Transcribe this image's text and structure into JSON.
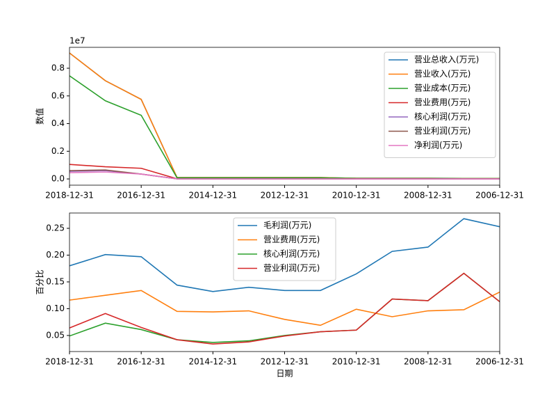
{
  "chart_data": [
    {
      "type": "line",
      "ylabel": "数值",
      "y_offset_label": "1e7",
      "categories": [
        "2018-12-31",
        null,
        "2016-12-31",
        null,
        "2014-12-31",
        null,
        "2012-12-31",
        null,
        "2010-12-31",
        null,
        "2008-12-31",
        null,
        "2006-12-31"
      ],
      "ylim": [
        -0.045,
        0.951
      ],
      "yticks": [
        {
          "value": 0,
          "label": "0.0"
        },
        0.2,
        0.4,
        0.6,
        0.8
      ],
      "legend": "upper right",
      "series": [
        {
          "name": "营业总收入(万元)",
          "color": "#1f77b4",
          "values": [
            0.91,
            0.71,
            0.575,
            0.01,
            0.01,
            0.01,
            0.01,
            0.01,
            0.005,
            0.005,
            0.005,
            0.004,
            0.004
          ]
        },
        {
          "name": "营业收入(万元)",
          "color": "#ff7f0e",
          "values": [
            0.91,
            0.71,
            0.575,
            0.01,
            0.01,
            0.01,
            0.01,
            0.01,
            0.005,
            0.005,
            0.005,
            0.004,
            0.004
          ]
        },
        {
          "name": "营业成本(万元)",
          "color": "#2ca02c",
          "values": [
            0.745,
            0.565,
            0.46,
            0.008,
            0.008,
            0.008,
            0.008,
            0.008,
            0.004,
            0.004,
            0.004,
            0.003,
            0.003
          ]
        },
        {
          "name": "营业费用(万元)",
          "color": "#d62728",
          "values": [
            0.105,
            0.088,
            0.077,
            0.001,
            0.001,
            0.001,
            0.001,
            0.001,
            0.0005,
            0.0005,
            0.0005,
            0.0004,
            0.0004
          ]
        },
        {
          "name": "核心利润(万元)",
          "color": "#9467bd",
          "values": [
            0.055,
            0.06,
            0.035,
            0.0005,
            0.0004,
            0.0004,
            0.0004,
            0.0004,
            0.0003,
            0.0003,
            0.0003,
            0.0003,
            0.0003
          ]
        },
        {
          "name": "营业利润(万元)",
          "color": "#8c564b",
          "values": [
            0.06,
            0.065,
            0.035,
            0.0005,
            0.0004,
            0.0004,
            0.0004,
            0.0004,
            0.0003,
            0.0003,
            0.0003,
            0.0003,
            0.0003
          ]
        },
        {
          "name": "净利润(万元)",
          "color": "#e377c2",
          "values": [
            0.045,
            0.05,
            0.035,
            0.0004,
            0.0003,
            0.0003,
            0.0003,
            0.0003,
            0.0002,
            0.0002,
            0.0002,
            0.0002,
            0.0002
          ]
        }
      ]
    },
    {
      "type": "line",
      "ylabel": "百分比",
      "xlabel": "日期",
      "categories": [
        "2018-12-31",
        null,
        "2016-12-31",
        null,
        "2014-12-31",
        null,
        "2012-12-31",
        null,
        "2010-12-31",
        null,
        "2008-12-31",
        null,
        "2006-12-31"
      ],
      "ylim": [
        0.02,
        0.2786
      ],
      "yticks": [
        0.05,
        {
          "value": 0.1,
          "label": "0.10"
        },
        0.15,
        {
          "value": 0.2,
          "label": "0.20"
        },
        0.25
      ],
      "legend": "upper center",
      "series": [
        {
          "name": "毛利润(万元)",
          "color": "#1f77b4",
          "values": [
            0.18,
            0.201,
            0.197,
            0.144,
            0.132,
            0.14,
            0.134,
            0.134,
            0.165,
            0.207,
            0.215,
            0.268,
            0.253
          ]
        },
        {
          "name": "营业费用(万元)",
          "color": "#ff7f0e",
          "values": [
            0.116,
            0.125,
            0.134,
            0.095,
            0.094,
            0.096,
            0.08,
            0.069,
            0.099,
            0.085,
            0.096,
            0.098,
            0.131
          ]
        },
        {
          "name": "核心利润(万元)",
          "color": "#2ca02c",
          "values": [
            0.049,
            0.073,
            0.061,
            0.042,
            0.037,
            0.04,
            0.05,
            0.057,
            0.06,
            0.118,
            0.115,
            0.166,
            0.113
          ]
        },
        {
          "name": "营业利润(万元)",
          "color": "#d62728",
          "values": [
            0.064,
            0.091,
            0.065,
            0.042,
            0.034,
            0.038,
            0.049,
            0.057,
            0.06,
            0.118,
            0.115,
            0.166,
            0.113
          ]
        }
      ]
    }
  ]
}
